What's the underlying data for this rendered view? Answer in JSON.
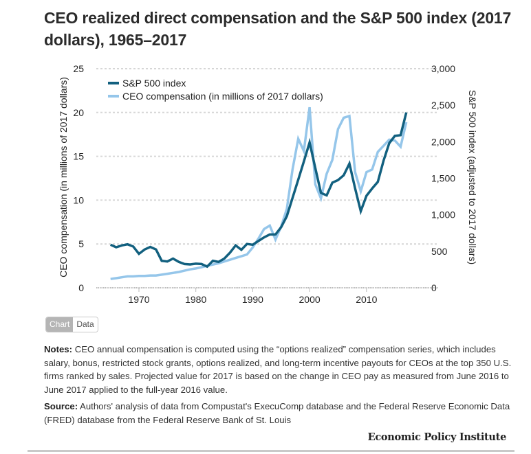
{
  "title": "CEO realized direct compensation and the S&P 500 index (2017 dollars), 1965–2017",
  "tabs": {
    "chart_label": "Chart",
    "data_label": "Data",
    "active": "Chart"
  },
  "notes": {
    "label": "Notes:",
    "text": " CEO annual compensation is computed using the “options realized” compensation series, which includes salary, bonus, restricted stock grants, options realized, and long-term incentive payouts for CEOs at the top 350 U.S. firms ranked by sales. Projected value for 2017 is based on the change in CEO pay as measured from June 2016 to June 2017 applied to the full-year 2016 value."
  },
  "source": {
    "label": "Source:",
    "text": " Authors' analysis of data from Compustat's ExecuComp database and the Federal Reserve Economic Data (FRED) database from the Federal Reserve Bank of St. Louis"
  },
  "publisher": "Economic Policy Institute",
  "colors": {
    "sp500": "#12607f",
    "ceo": "#95c6ea",
    "grid": "#d6d6d6",
    "axis": "#bbbbbb"
  },
  "chart_data": {
    "type": "line",
    "title": "CEO realized direct compensation and the S&P 500 index (2017 dollars), 1965–2017",
    "xlabel": "",
    "ylabel": "CEO compensation (in millions of 2017 dollars)",
    "y2label": "S&P 500 index (adjusted to 2017 dollars)",
    "xlim": [
      1963,
      2020
    ],
    "ylim": [
      0,
      25
    ],
    "y2lim": [
      0,
      3000
    ],
    "xticks": [
      1970,
      1980,
      1990,
      2000,
      2010
    ],
    "xtick_labels": [
      "1970",
      "1980",
      "1990",
      "2000",
      "2010"
    ],
    "yticks": [
      0,
      5,
      10,
      15,
      20,
      25
    ],
    "ytick_labels": [
      "0",
      "5",
      "10",
      "15",
      "20",
      "25"
    ],
    "y2ticks": [
      0,
      500,
      1000,
      1500,
      2000,
      2500,
      3000
    ],
    "y2tick_labels": [
      "0",
      "500",
      "1,000",
      "1,500",
      "2,000",
      "2,500",
      "3,000"
    ],
    "grid": true,
    "legend_position": "top-left",
    "x": [
      1965,
      1966,
      1967,
      1968,
      1969,
      1970,
      1971,
      1972,
      1973,
      1974,
      1975,
      1976,
      1977,
      1978,
      1979,
      1980,
      1981,
      1982,
      1983,
      1984,
      1985,
      1986,
      1987,
      1988,
      1989,
      1990,
      1991,
      1992,
      1993,
      1994,
      1995,
      1996,
      1997,
      1998,
      1999,
      2000,
      2001,
      2002,
      2003,
      2004,
      2005,
      2006,
      2007,
      2008,
      2009,
      2010,
      2011,
      2012,
      2013,
      2014,
      2015,
      2016,
      2017
    ],
    "series": [
      {
        "name": "S&P 500 index",
        "axis": "right",
        "values": [
          590,
          555,
          580,
          595,
          565,
          465,
          525,
          560,
          525,
          370,
          360,
          400,
          355,
          325,
          320,
          330,
          325,
          290,
          370,
          355,
          400,
          480,
          580,
          520,
          600,
          590,
          640,
          690,
          730,
          730,
          830,
          980,
          1230,
          1480,
          1730,
          1990,
          1640,
          1300,
          1265,
          1440,
          1475,
          1540,
          1700,
          1360,
          1050,
          1260,
          1360,
          1450,
          1740,
          1980,
          2080,
          2090,
          2400
        ]
      },
      {
        "name": "CEO compensation (in millions of 2017 dollars)",
        "axis": "left",
        "values": [
          1.0,
          1.1,
          1.2,
          1.3,
          1.3,
          1.35,
          1.35,
          1.4,
          1.4,
          1.5,
          1.6,
          1.7,
          1.8,
          1.95,
          2.1,
          2.2,
          2.35,
          2.5,
          2.65,
          2.8,
          3.0,
          3.2,
          3.4,
          3.6,
          3.8,
          4.6,
          5.6,
          6.7,
          7.1,
          5.5,
          7.0,
          9.0,
          13.5,
          17.0,
          15.6,
          20.6,
          11.8,
          10.2,
          13.0,
          14.6,
          18.1,
          19.4,
          19.6,
          13.2,
          11.0,
          13.2,
          13.5,
          15.5,
          16.2,
          16.9,
          16.8,
          16.1,
          18.9
        ]
      }
    ]
  }
}
